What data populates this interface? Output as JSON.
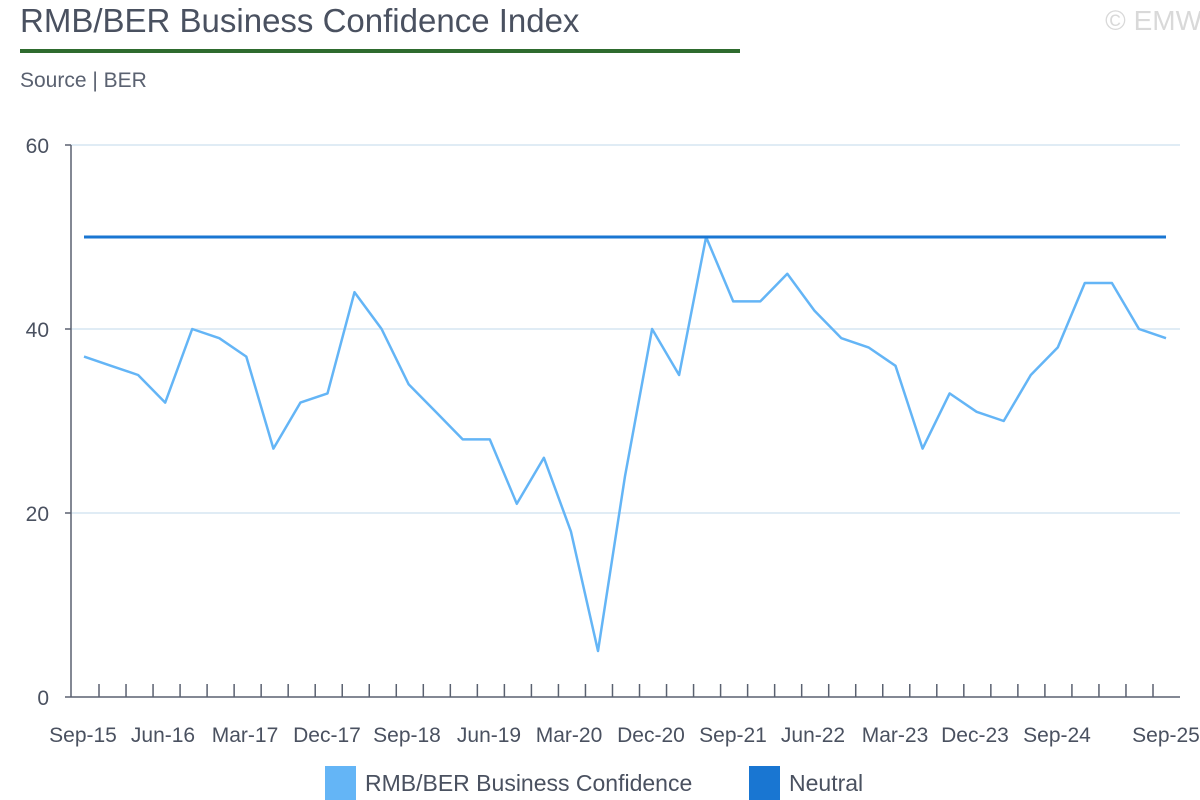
{
  "header": {
    "title": "RMB/BER Business Confidence Index",
    "source": "Source | BER",
    "copyright": "© EMW"
  },
  "colors": {
    "series_confidence": "#64b5f6",
    "series_neutral": "#1976d2",
    "title_rule": "#2e6b2e",
    "gridline": "#d6e6f2",
    "axis": "#5a6170",
    "text": "#4a5160"
  },
  "chart_data": {
    "type": "line",
    "title": "RMB/BER Business Confidence Index",
    "xlabel": "",
    "ylabel": "",
    "ylim": [
      0,
      60
    ],
    "yticks": [
      0,
      20,
      40,
      60
    ],
    "grid": true,
    "legend": "bottom",
    "x": [
      "Sep-15",
      "Dec-15",
      "Mar-16",
      "Jun-16",
      "Sep-16",
      "Dec-16",
      "Mar-17",
      "Jun-17",
      "Sep-17",
      "Dec-17",
      "Mar-18",
      "Jun-18",
      "Sep-18",
      "Dec-18",
      "Mar-19",
      "Jun-19",
      "Sep-19",
      "Dec-19",
      "Mar-20",
      "Jun-20",
      "Sep-20",
      "Dec-20",
      "Mar-21",
      "Jun-21",
      "Sep-21",
      "Dec-21",
      "Mar-22",
      "Jun-22",
      "Sep-22",
      "Dec-22",
      "Mar-23",
      "Jun-23",
      "Sep-23",
      "Dec-23",
      "Mar-24",
      "Jun-24",
      "Sep-24",
      "Dec-24",
      "Mar-25",
      "Jun-25",
      "Sep-25"
    ],
    "tick_labels": [
      "Sep-15",
      "Jun-16",
      "Mar-17",
      "Dec-17",
      "Sep-18",
      "Jun-19",
      "Mar-20",
      "Dec-20",
      "Sep-21",
      "Jun-22",
      "Mar-23",
      "Dec-23",
      "Sep-24",
      "Sep-25"
    ],
    "series": [
      {
        "name": "RMB/BER Business Confidence",
        "values": [
          37,
          36,
          35,
          32,
          40,
          39,
          37,
          27,
          32,
          33,
          44,
          40,
          34,
          31,
          28,
          28,
          21,
          26,
          18,
          5,
          24,
          40,
          35,
          50,
          43,
          43,
          46,
          42,
          39,
          38,
          36,
          27,
          33,
          31,
          30,
          35,
          38,
          45,
          45,
          40,
          39
        ]
      },
      {
        "name": "Neutral",
        "values": [
          50,
          50,
          50,
          50,
          50,
          50,
          50,
          50,
          50,
          50,
          50,
          50,
          50,
          50,
          50,
          50,
          50,
          50,
          50,
          50,
          50,
          50,
          50,
          50,
          50,
          50,
          50,
          50,
          50,
          50,
          50,
          50,
          50,
          50,
          50,
          50,
          50,
          50,
          50,
          50,
          50
        ]
      }
    ]
  }
}
